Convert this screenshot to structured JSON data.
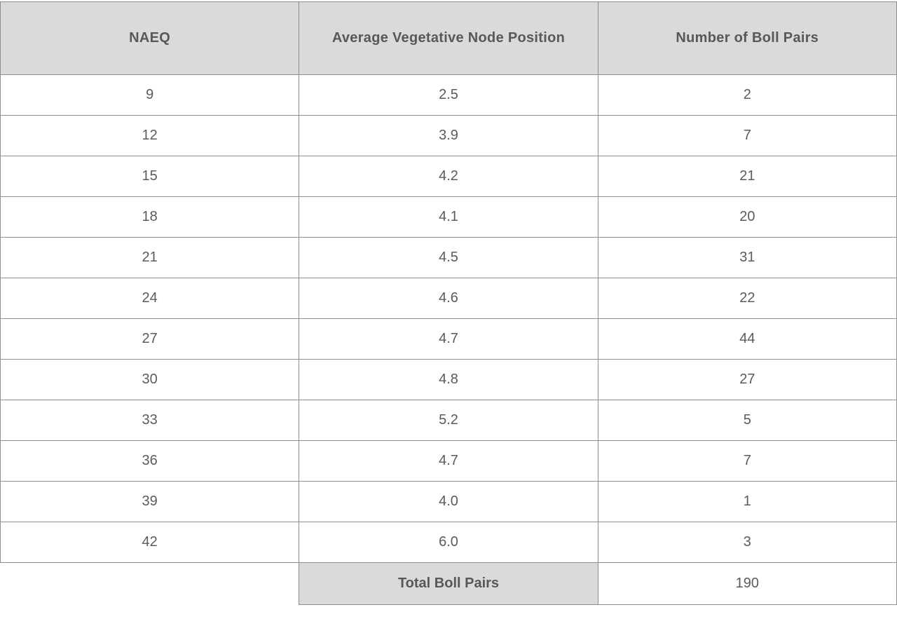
{
  "colors": {
    "header_bg": "#d9dadb",
    "border": "#8f8f8f",
    "text": "#58595b",
    "row_bg": "#ffffff"
  },
  "chart_data": {
    "type": "table",
    "columns": [
      "NAEQ",
      "Average Vegetative Node Position",
      "Number of Boll Pairs"
    ],
    "rows": [
      [
        "9",
        "2.5",
        "2"
      ],
      [
        "12",
        "3.9",
        "7"
      ],
      [
        "15",
        "4.2",
        "21"
      ],
      [
        "18",
        "4.1",
        "20"
      ],
      [
        "21",
        "4.5",
        "31"
      ],
      [
        "24",
        "4.6",
        "22"
      ],
      [
        "27",
        "4.7",
        "44"
      ],
      [
        "30",
        "4.8",
        "27"
      ],
      [
        "33",
        "5.2",
        "5"
      ],
      [
        "36",
        "4.7",
        "7"
      ],
      [
        "39",
        "4.0",
        "1"
      ],
      [
        "42",
        "6.0",
        "3"
      ]
    ],
    "total_label": "Total Boll Pairs",
    "total_value": "190",
    "layout": {
      "grid": true,
      "header_position": "top",
      "footer_total_row": true
    }
  }
}
